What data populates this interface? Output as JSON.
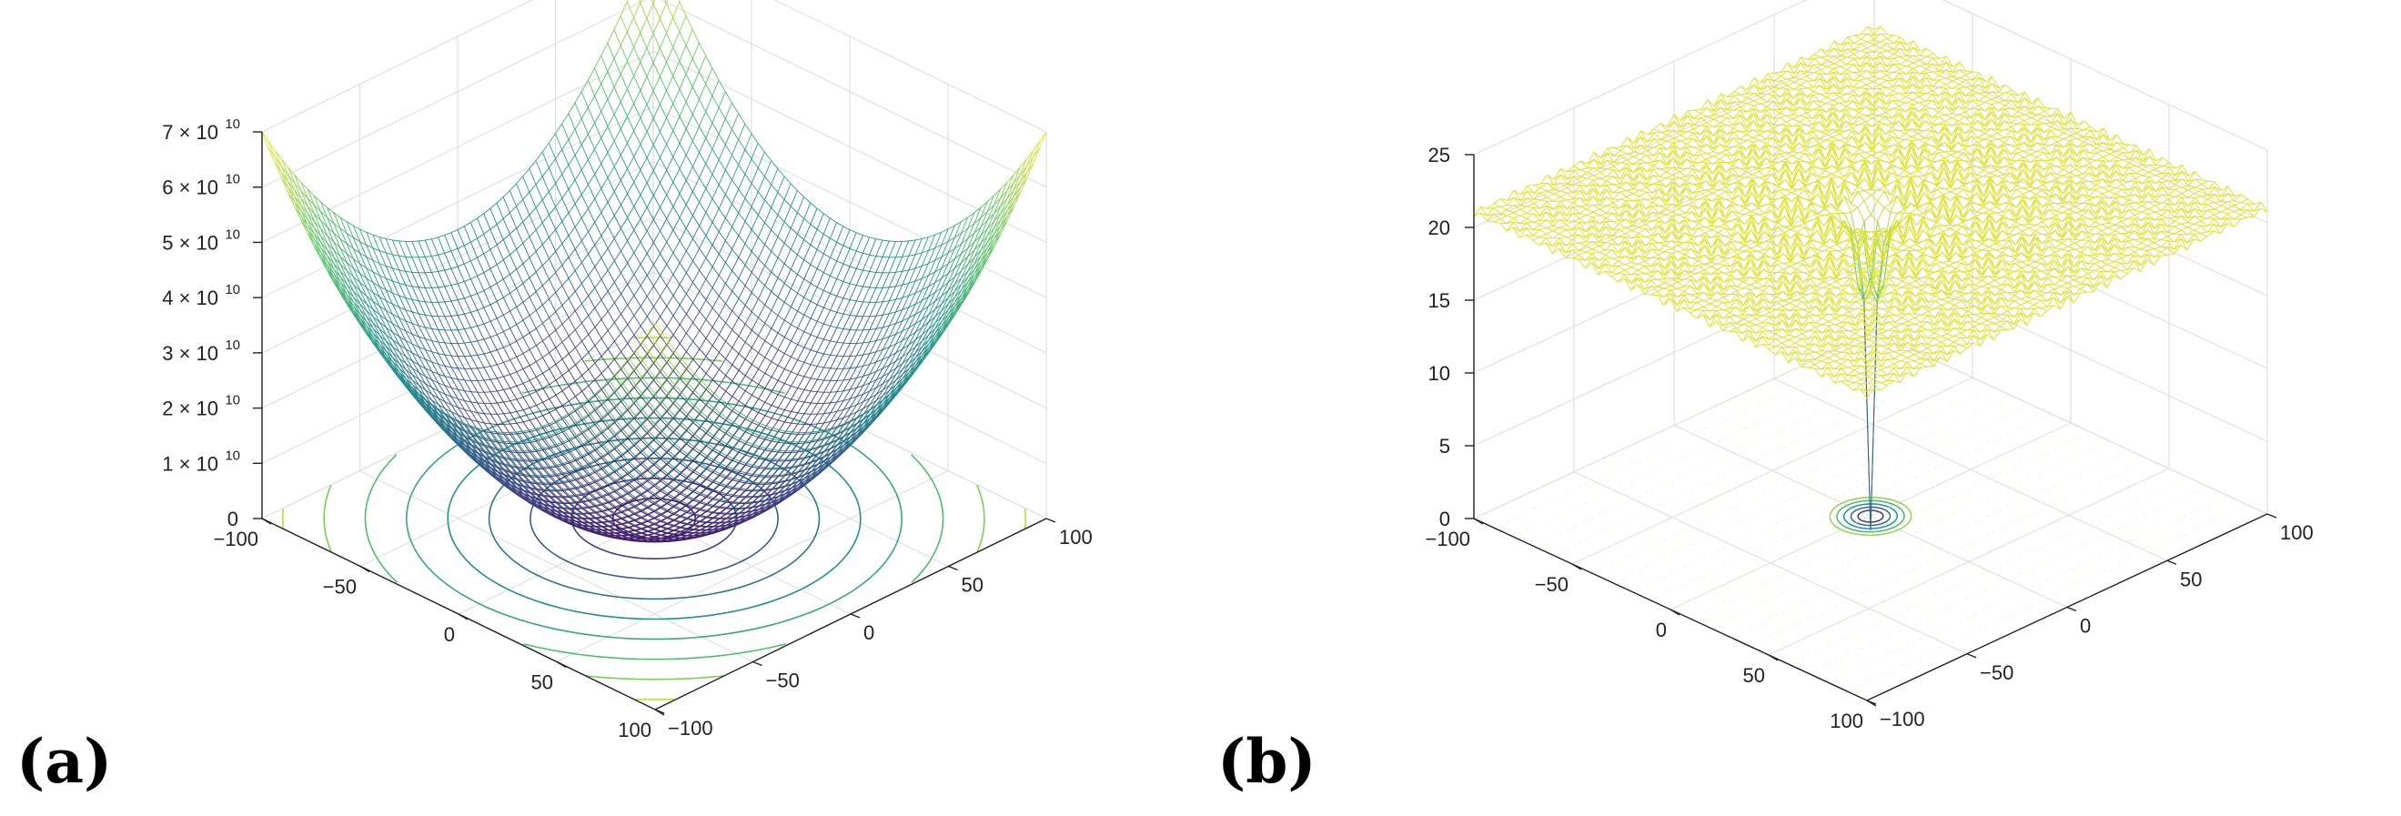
{
  "figure": {
    "panels": [
      {
        "id": "a",
        "label": "(a)"
      },
      {
        "id": "b",
        "label": "(b)"
      }
    ]
  },
  "chart_data": [
    {
      "type": "surface",
      "label": "(a)",
      "description_kind": "mesh surface with contour projection on base plane",
      "x": {
        "ticks": [
          -100,
          -50,
          0,
          50,
          100
        ],
        "tick_labels": [
          "−100",
          "−50",
          "0",
          "50",
          "100"
        ],
        "range": [
          -100,
          100
        ]
      },
      "y": {
        "ticks": [
          -100,
          -50,
          0,
          50,
          100
        ],
        "tick_labels": [
          "−100",
          "−50",
          "0",
          "50",
          "100"
        ],
        "range": [
          -100,
          100
        ]
      },
      "z": {
        "ticks": [
          0,
          10000000000.0,
          20000000000.0,
          30000000000.0,
          40000000000.0,
          50000000000.0,
          60000000000.0,
          70000000000.0
        ],
        "tick_labels": [
          {
            "mant": "0",
            "exp": ""
          },
          {
            "mant": "1 × 10",
            "exp": "10"
          },
          {
            "mant": "2 × 10",
            "exp": "10"
          },
          {
            "mant": "3 × 10",
            "exp": "10"
          },
          {
            "mant": "4 × 10",
            "exp": "10"
          },
          {
            "mant": "5 × 10",
            "exp": "10"
          },
          {
            "mant": "6 × 10",
            "exp": "10"
          },
          {
            "mant": "7 × 10",
            "exp": "10"
          }
        ],
        "range": [
          0,
          70000000000.0
        ]
      },
      "surface": {
        "max_value": 70000000000.0,
        "min_value": 0,
        "minimum_at": [
          0,
          0
        ],
        "contour_levels": 9
      },
      "colormap": [
        "#440154",
        "#3b528b",
        "#21908d",
        "#5dc863",
        "#fde725"
      ]
    },
    {
      "type": "surface",
      "label": "(b)",
      "description_kind": "mesh surface with contour projection on base plane",
      "x": {
        "ticks": [
          -100,
          -50,
          0,
          50,
          100
        ],
        "tick_labels": [
          "−100",
          "−50",
          "0",
          "50",
          "100"
        ],
        "range": [
          -100,
          100
        ]
      },
      "y": {
        "ticks": [
          -100,
          -50,
          0,
          50,
          100
        ],
        "tick_labels": [
          "−100",
          "−50",
          "0",
          "50",
          "100"
        ],
        "range": [
          -100,
          100
        ]
      },
      "z": {
        "ticks": [
          0,
          5,
          10,
          15,
          20,
          25
        ],
        "tick_labels": [
          {
            "mant": "0",
            "exp": ""
          },
          {
            "mant": "5",
            "exp": ""
          },
          {
            "mant": "10",
            "exp": ""
          },
          {
            "mant": "15",
            "exp": ""
          },
          {
            "mant": "20",
            "exp": ""
          },
          {
            "mant": "25",
            "exp": ""
          }
        ],
        "range": [
          0,
          25
        ]
      },
      "surface": {
        "plateau_value": 21,
        "min_value": 0,
        "minimum_at": [
          0,
          0
        ]
      },
      "colormap": [
        "#440154",
        "#3b528b",
        "#21908d",
        "#5dc863",
        "#fde725"
      ]
    }
  ]
}
